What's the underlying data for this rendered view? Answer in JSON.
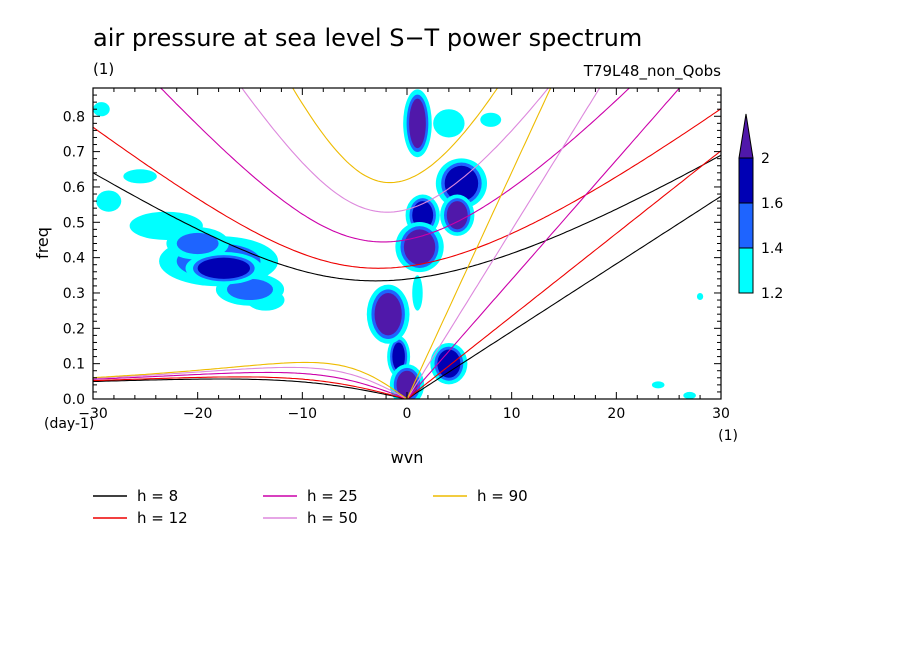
{
  "chart_data": {
    "type": "contour",
    "title": "air pressure at sea level S−T power spectrum",
    "title_unit": "(1)",
    "run_label": "T79L48_non_Qobs",
    "xlabel": "wvn",
    "x_unit": "(1)",
    "ylabel": "freq",
    "y_unit": "(day-1)",
    "xlim": [
      -30,
      30
    ],
    "ylim": [
      0.0,
      0.88
    ],
    "x_ticks": [
      -30,
      -20,
      -10,
      0,
      10,
      20,
      30
    ],
    "x_tick_labels": [
      "−30",
      "−20",
      "−10",
      "0",
      "10",
      "20",
      "30"
    ],
    "y_ticks": [
      0.0,
      0.1,
      0.2,
      0.3,
      0.4,
      0.5,
      0.6,
      0.7,
      0.8
    ],
    "y_tick_labels": [
      "0.0",
      "0.1",
      "0.2",
      "0.3",
      "0.4",
      "0.5",
      "0.6",
      "0.7",
      "0.8"
    ],
    "grid": false,
    "legend_position": "bottom",
    "legend": [
      {
        "label": "h =  8",
        "color": "#000000"
      },
      {
        "label": "h = 12",
        "color": "#ee0000"
      },
      {
        "label": "h = 25",
        "color": "#cc00aa"
      },
      {
        "label": "h = 50",
        "color": "#dd88dd"
      },
      {
        "label": "h = 90",
        "color": "#eebb00"
      }
    ],
    "colorbar": {
      "levels": [
        "1.2",
        "1.4",
        "1.6",
        "2"
      ],
      "colors": [
        "#00ffff",
        "#1e64ff",
        "#0000b4",
        "#5018aa"
      ]
    },
    "dispersion_curves": [
      {
        "h": 8,
        "color": "#000000"
      },
      {
        "h": 12,
        "color": "#ee0000"
      },
      {
        "h": 25,
        "color": "#cc00aa"
      },
      {
        "h": 50,
        "color": "#dd88dd"
      },
      {
        "h": 90,
        "color": "#eebb00"
      }
    ],
    "contour_blobs": [
      {
        "x": 1.0,
        "y": 0.78,
        "rx": 0.8,
        "ry": 0.07,
        "level": 3
      },
      {
        "x": 1.2,
        "y": 0.43,
        "rx": 1.5,
        "ry": 0.05,
        "level": 3
      },
      {
        "x": 1.5,
        "y": 0.52,
        "rx": 1.0,
        "ry": 0.04,
        "level": 2
      },
      {
        "x": -1.8,
        "y": 0.24,
        "rx": 1.3,
        "ry": 0.06,
        "level": 3
      },
      {
        "x": 0.0,
        "y": 0.04,
        "rx": 1.0,
        "ry": 0.04,
        "level": 3
      },
      {
        "x": 5.2,
        "y": 0.61,
        "rx": 1.6,
        "ry": 0.05,
        "level": 2
      },
      {
        "x": 4.8,
        "y": 0.52,
        "rx": 1.0,
        "ry": 0.04,
        "level": 3
      },
      {
        "x": 4.0,
        "y": 0.1,
        "rx": 1.1,
        "ry": 0.04,
        "level": 2
      },
      {
        "x": -18.0,
        "y": 0.39,
        "rx": 4.0,
        "ry": 0.05,
        "level": 1
      },
      {
        "x": -17.5,
        "y": 0.37,
        "rx": 2.5,
        "ry": 0.03,
        "level": 2
      },
      {
        "x": -15.0,
        "y": 0.31,
        "rx": 2.2,
        "ry": 0.03,
        "level": 1
      },
      {
        "x": -23.0,
        "y": 0.49,
        "rx": 3.5,
        "ry": 0.04,
        "level": 0
      },
      {
        "x": -20.0,
        "y": 0.44,
        "rx": 2.0,
        "ry": 0.03,
        "level": 1
      },
      {
        "x": -25.5,
        "y": 0.63,
        "rx": 1.6,
        "ry": 0.02,
        "level": 0
      },
      {
        "x": -28.5,
        "y": 0.56,
        "rx": 1.2,
        "ry": 0.03,
        "level": 0
      },
      {
        "x": -29.2,
        "y": 0.82,
        "rx": 0.8,
        "ry": 0.02,
        "level": 0
      },
      {
        "x": -13.5,
        "y": 0.28,
        "rx": 1.8,
        "ry": 0.03,
        "level": 0
      },
      {
        "x": 4.0,
        "y": 0.78,
        "rx": 1.5,
        "ry": 0.04,
        "level": 0
      },
      {
        "x": 8.0,
        "y": 0.79,
        "rx": 1.0,
        "ry": 0.02,
        "level": 0
      },
      {
        "x": -0.8,
        "y": 0.12,
        "rx": 0.6,
        "ry": 0.04,
        "level": 2
      },
      {
        "x": 1.0,
        "y": 0.3,
        "rx": 0.5,
        "ry": 0.05,
        "level": 0
      },
      {
        "x": 24.0,
        "y": 0.04,
        "rx": 0.6,
        "ry": 0.01,
        "level": 0
      },
      {
        "x": 27.0,
        "y": 0.01,
        "rx": 0.6,
        "ry": 0.01,
        "level": 0
      },
      {
        "x": 28.0,
        "y": 0.29,
        "rx": 0.3,
        "ry": 0.01,
        "level": 0
      }
    ]
  }
}
